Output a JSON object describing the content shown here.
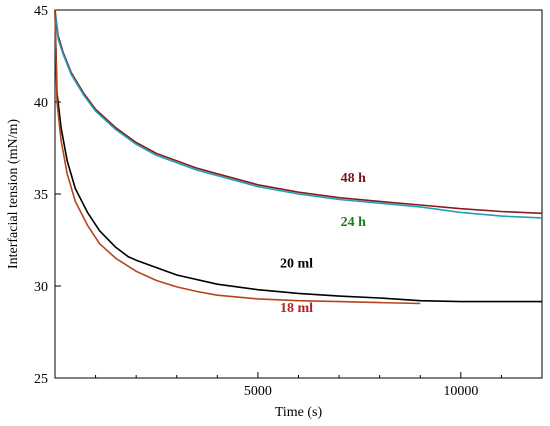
{
  "chart_data": {
    "type": "line",
    "xlabel": "Time (s)",
    "ylabel": "Interfacial tension (mN/m)",
    "xlim": [
      0,
      12000
    ],
    "ylim": [
      25,
      45
    ],
    "xticks": [
      5000,
      10000
    ],
    "yticks": [
      25,
      30,
      35,
      40,
      45
    ],
    "grid": false,
    "series": [
      {
        "name": "48 h",
        "color": "#8b1a1a",
        "label_color": "#7a1420",
        "x": [
          0,
          80,
          200,
          400,
          700,
          1000,
          1500,
          2000,
          2500,
          3000,
          3500,
          4000,
          5000,
          6000,
          7000,
          8000,
          9000,
          10000,
          11000,
          12000
        ],
        "y": [
          45.0,
          43.6,
          42.7,
          41.6,
          40.5,
          39.6,
          38.6,
          37.8,
          37.2,
          36.8,
          36.4,
          36.1,
          35.5,
          35.1,
          34.8,
          34.6,
          34.4,
          34.2,
          34.05,
          33.95
        ]
      },
      {
        "name": "24 h",
        "color": "#1aa3b8",
        "label_color": "#1e7a1e",
        "x": [
          0,
          80,
          200,
          400,
          700,
          1000,
          1500,
          2000,
          2500,
          3000,
          3500,
          4000,
          5000,
          6000,
          7000,
          8000,
          9000,
          10000,
          11000,
          12000
        ],
        "y": [
          45.0,
          43.4,
          42.6,
          41.5,
          40.4,
          39.5,
          38.5,
          37.7,
          37.1,
          36.7,
          36.3,
          36.0,
          35.4,
          35.0,
          34.7,
          34.5,
          34.3,
          34.0,
          33.8,
          33.7
        ]
      },
      {
        "name": "20 ml",
        "color": "#000000",
        "label_color": "#000000",
        "x": [
          0,
          50,
          150,
          300,
          500,
          800,
          1100,
          1500,
          1800,
          2000,
          2500,
          3000,
          4000,
          5000,
          6000,
          7000,
          8000,
          9000,
          10000,
          11000,
          12000
        ],
        "y": [
          45.0,
          40.5,
          38.6,
          36.8,
          35.3,
          34.0,
          33.0,
          32.1,
          31.6,
          31.4,
          31.0,
          30.6,
          30.1,
          29.8,
          29.6,
          29.45,
          29.35,
          29.2,
          29.15,
          29.15,
          29.15
        ]
      },
      {
        "name": "18 ml",
        "color": "#b5451b",
        "label_color": "#b22222",
        "x": [
          0,
          50,
          150,
          300,
          500,
          800,
          1100,
          1500,
          2000,
          2500,
          3000,
          3500,
          4000,
          5000,
          6000,
          7000,
          8000,
          9000
        ],
        "y": [
          45.0,
          40.0,
          37.9,
          36.1,
          34.6,
          33.3,
          32.3,
          31.5,
          30.8,
          30.3,
          29.95,
          29.7,
          29.5,
          29.3,
          29.2,
          29.15,
          29.1,
          29.05
        ]
      }
    ]
  }
}
